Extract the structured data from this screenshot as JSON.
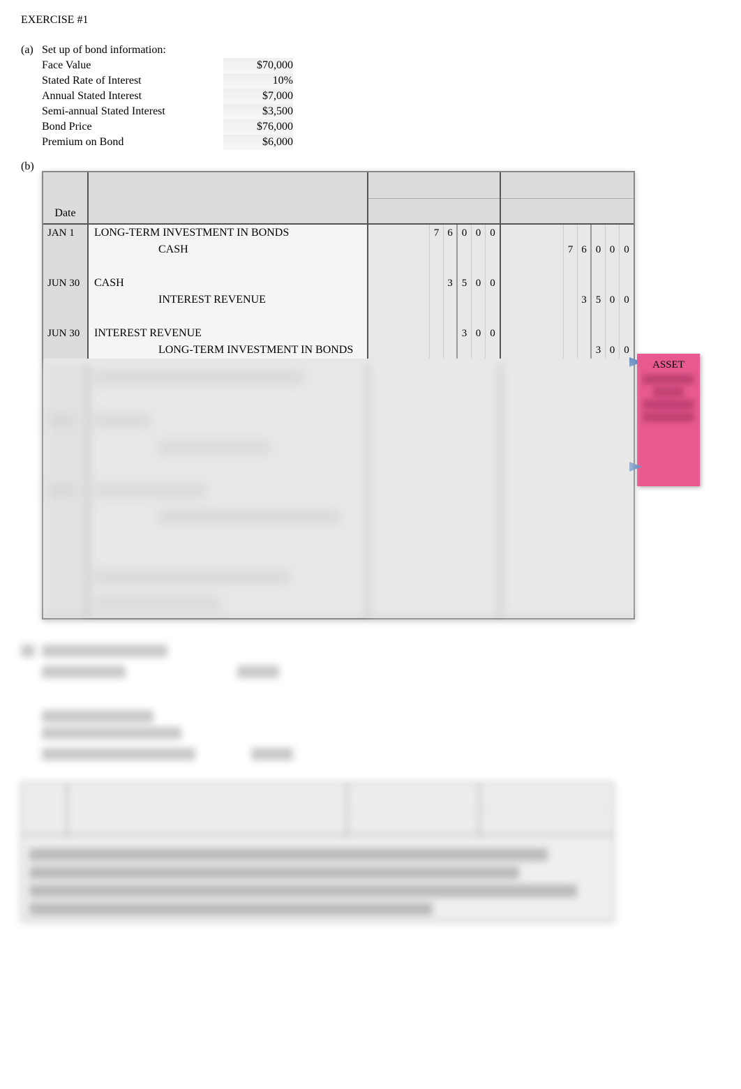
{
  "title": "EXERCISE #1",
  "section_a": {
    "label": "(a)",
    "heading": "Set up of bond information:",
    "rows": [
      {
        "label": "Face Value",
        "value": "$70,000"
      },
      {
        "label": "Stated Rate of Interest",
        "value": "10%"
      },
      {
        "label": "Annual Stated Interest",
        "value": "$7,000"
      },
      {
        "label": "Semi-annual Stated Interest",
        "value": "$3,500"
      },
      {
        "label": "Bond Price",
        "value": "$76,000"
      },
      {
        "label": "Premium on Bond",
        "value": "$6,000"
      }
    ]
  },
  "section_b": {
    "label": "(b)",
    "journal_header": {
      "date": "Date"
    },
    "entries": [
      {
        "date": "JAN 1",
        "account": "LONG-TERM INVESTMENT IN BONDS",
        "debit": [
          "7",
          "6",
          "0",
          "0",
          "0"
        ],
        "credit": [],
        "indent": false
      },
      {
        "date": "",
        "account": "CASH",
        "debit": [],
        "credit": [
          "7",
          "6",
          "0",
          "0",
          "0"
        ],
        "indent": true
      },
      {
        "date": "",
        "account": "",
        "debit": [],
        "credit": [],
        "indent": false
      },
      {
        "date": "JUN 30",
        "account": "CASH",
        "debit": [
          "",
          "3",
          "5",
          "0",
          "0"
        ],
        "credit": [],
        "indent": false
      },
      {
        "date": "",
        "account": "INTEREST REVENUE",
        "debit": [],
        "credit": [
          "",
          "3",
          "5",
          "0",
          "0"
        ],
        "indent": true
      },
      {
        "date": "",
        "account": "",
        "debit": [],
        "credit": [],
        "indent": false
      },
      {
        "date": "JUN 30",
        "account": "INTEREST REVENUE",
        "debit": [
          "",
          "",
          "3",
          "0",
          "0"
        ],
        "credit": [],
        "indent": false
      },
      {
        "date": "",
        "account": "LONG-TERM INVESTMENT IN BONDS",
        "debit": [],
        "credit": [
          "",
          "",
          "3",
          "0",
          "0"
        ],
        "indent": true
      }
    ]
  },
  "sticky": {
    "title": "ASSET"
  },
  "colors": {
    "background": "#ffffff",
    "text": "#000000",
    "journal_border": "#888888",
    "journal_bg": "#e8e8e8",
    "journal_header_bg": "#dcdcdc",
    "sticky_bg": "#e85a8f",
    "arrow": "#6a8fc4"
  }
}
